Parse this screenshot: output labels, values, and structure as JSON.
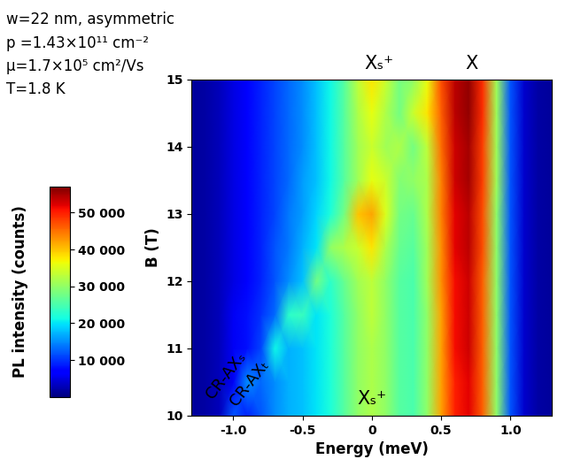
{
  "chart_data": {
    "type": "heatmap",
    "xlabel": "Energy (meV)",
    "ylabel": "B (T)",
    "colorbar_label": "PL intensity (counts)",
    "info": [
      "w=22 nm, asymmetric",
      "p =1.43×10¹¹ cm⁻²",
      "μ=1.7×10⁵ cm²/Vs",
      "T=1.8 K"
    ],
    "peak_labels": [
      {
        "text": "Xₛ⁺",
        "x": 0.05
      },
      {
        "text": "X",
        "x": 0.72
      }
    ],
    "bottom_label": {
      "text": "Xₛ⁺",
      "x": 0.0
    },
    "line_labels": [
      "CR-AXₛ",
      "CR-AXₜ"
    ],
    "xlim": [
      -1.3,
      1.3
    ],
    "xticks": [
      {
        "value": -1.0,
        "label": "-1.0"
      },
      {
        "value": -0.5,
        "label": "-0.5"
      },
      {
        "value": 0,
        "label": "0"
      },
      {
        "value": 0.5,
        "label": "0.5"
      },
      {
        "value": 1.0,
        "label": "1.0"
      }
    ],
    "ylim": [
      10,
      15
    ],
    "yticks": [
      10,
      11,
      12,
      13,
      14,
      15
    ],
    "x": [
      -1.3,
      -1.2,
      -1.1,
      -1.0,
      -0.9,
      -0.8,
      -0.7,
      -0.6,
      -0.5,
      -0.4,
      -0.3,
      -0.2,
      -0.1,
      0.0,
      0.1,
      0.2,
      0.3,
      0.4,
      0.5,
      0.6,
      0.7,
      0.8,
      0.9,
      1.0,
      1.1,
      1.2,
      1.3
    ],
    "y": [
      10,
      10.5,
      11,
      11.5,
      12,
      12.5,
      13,
      13.5,
      14,
      14.5,
      15
    ],
    "z": [
      [
        1500,
        2000,
        3000,
        12000,
        9000,
        12000,
        15000,
        17000,
        18000,
        20000,
        22000,
        26000,
        30000,
        32000,
        30000,
        26000,
        25000,
        30000,
        42000,
        50000,
        52000,
        46000,
        30000,
        12000,
        4000,
        2000,
        1500
      ],
      [
        1500,
        2000,
        3000,
        6000,
        15000,
        13000,
        15000,
        17000,
        18000,
        20000,
        22000,
        26000,
        30000,
        32000,
        30000,
        26000,
        25000,
        30000,
        42000,
        50000,
        52000,
        46000,
        30000,
        12000,
        4000,
        2000,
        1500
      ],
      [
        1500,
        2000,
        3000,
        6000,
        8000,
        11000,
        21000,
        17000,
        18000,
        20000,
        22000,
        26000,
        30000,
        32000,
        30000,
        26000,
        25000,
        30000,
        42000,
        51000,
        53000,
        46000,
        30000,
        12000,
        4000,
        2000,
        1500
      ],
      [
        1500,
        2000,
        3000,
        6000,
        8000,
        10000,
        13000,
        23000,
        24000,
        20000,
        22000,
        26000,
        30000,
        33000,
        30000,
        26000,
        25000,
        30000,
        42000,
        51000,
        53000,
        46000,
        30000,
        12000,
        4000,
        2000,
        1500
      ],
      [
        1500,
        2000,
        3000,
        5000,
        7000,
        9000,
        12000,
        15000,
        18000,
        28000,
        23000,
        27000,
        31000,
        33000,
        30000,
        26000,
        25000,
        31000,
        43000,
        51000,
        53000,
        46000,
        30000,
        12000,
        4000,
        2000,
        1500
      ],
      [
        1500,
        2000,
        3000,
        5000,
        7000,
        9000,
        12000,
        14000,
        17000,
        20000,
        30000,
        32000,
        34000,
        38000,
        32000,
        27000,
        26000,
        31000,
        43000,
        52000,
        54000,
        47000,
        30000,
        12000,
        4000,
        2000,
        1500
      ],
      [
        1500,
        2000,
        3000,
        5000,
        7000,
        9000,
        11000,
        14000,
        16000,
        19000,
        22000,
        28000,
        40000,
        42000,
        35000,
        28000,
        27000,
        32000,
        44000,
        52000,
        54000,
        47000,
        30000,
        12000,
        4000,
        2000,
        1500
      ],
      [
        1500,
        2000,
        3000,
        5000,
        7000,
        9000,
        11000,
        13000,
        16000,
        18000,
        21000,
        26000,
        31000,
        36000,
        34000,
        29000,
        30000,
        32000,
        44000,
        53000,
        55000,
        48000,
        31000,
        12000,
        4000,
        2000,
        1500
      ],
      [
        1500,
        2000,
        3000,
        5000,
        7000,
        9000,
        11000,
        13000,
        15000,
        18000,
        21000,
        26000,
        31000,
        34000,
        31000,
        32000,
        28000,
        33000,
        45000,
        53000,
        55000,
        48000,
        31000,
        12000,
        4000,
        2000,
        1500
      ],
      [
        1500,
        2000,
        3000,
        5000,
        7000,
        9000,
        11000,
        13000,
        15000,
        18000,
        21000,
        26000,
        32000,
        36000,
        32000,
        28000,
        34000,
        38000,
        46000,
        54000,
        56000,
        49000,
        31000,
        12000,
        4000,
        2000,
        1500
      ],
      [
        1500,
        2000,
        3000,
        5000,
        7000,
        9000,
        11000,
        13000,
        15000,
        18000,
        21000,
        26000,
        33000,
        38000,
        34000,
        28000,
        30000,
        36000,
        47000,
        54000,
        56000,
        49000,
        31000,
        12000,
        4000,
        2000,
        1500
      ]
    ],
    "colorbar_range": [
      0,
      57000
    ],
    "colorbar_ticks": [
      {
        "value": 10000,
        "label": "10 000"
      },
      {
        "value": 20000,
        "label": "20 000"
      },
      {
        "value": 30000,
        "label": "30 000"
      },
      {
        "value": 40000,
        "label": "40 000"
      },
      {
        "value": 50000,
        "label": "50 000"
      }
    ]
  }
}
